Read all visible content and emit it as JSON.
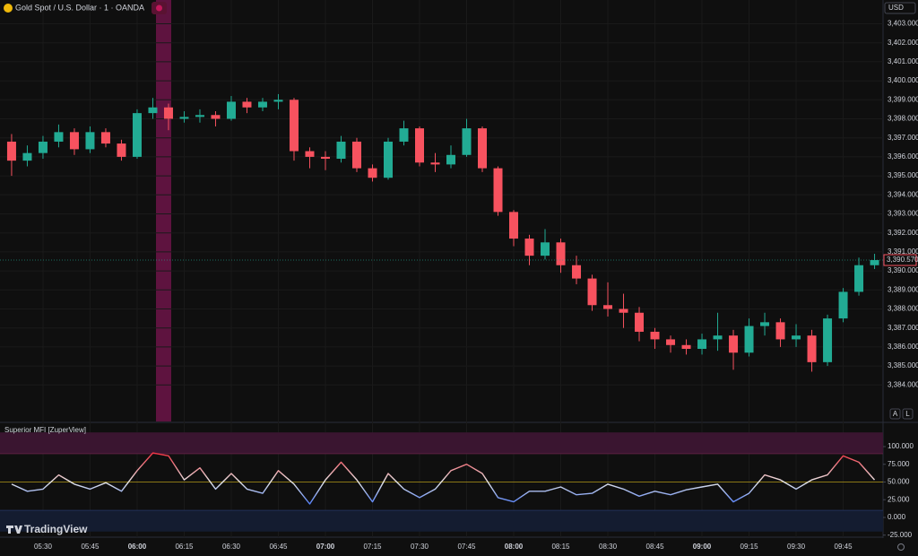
{
  "header": {
    "symbol": "Gold Spot / U.S. Dollar · 1 · OANDA",
    "currency": "USD",
    "auto_button": "A",
    "log_button": "L",
    "brand": "TradingView"
  },
  "chart_data": [
    {
      "type": "candlestick",
      "up_color": "#22ab94",
      "down_color": "#f7525f",
      "open": [
        3396.8,
        3395.8,
        3396.2,
        3396.8,
        3397.3,
        3396.4,
        3397.3,
        3396.7,
        3396.0,
        3398.3,
        3398.6,
        3398.0,
        3398.1,
        3398.2,
        3398.0,
        3398.9,
        3398.6,
        3398.9,
        3399.0,
        3396.3,
        3396.0,
        3395.9,
        3396.8,
        3395.4,
        3394.9,
        3396.8,
        3397.5,
        3395.7,
        3395.6,
        3396.1,
        3397.5,
        3395.4,
        3393.1,
        3391.7,
        3390.8,
        3391.5,
        3390.3,
        3389.6,
        3388.2,
        3388.0,
        3387.8,
        3386.8,
        3386.4,
        3386.1,
        3385.9,
        3386.4,
        3386.6,
        3385.7,
        3387.1,
        3387.3,
        3386.4,
        3386.6,
        3385.2,
        3387.5,
        3388.9,
        3390.3
      ],
      "high": [
        3397.2,
        3396.6,
        3397.1,
        3397.7,
        3397.5,
        3397.6,
        3397.5,
        3396.9,
        3398.5,
        3399.1,
        3398.8,
        3398.4,
        3398.5,
        3398.4,
        3399.2,
        3399.1,
        3399.1,
        3399.3,
        3399.1,
        3396.5,
        3396.3,
        3397.1,
        3397.0,
        3395.6,
        3397.0,
        3397.9,
        3397.6,
        3396.2,
        3396.6,
        3398.0,
        3397.6,
        3395.5,
        3393.2,
        3391.9,
        3392.2,
        3391.7,
        3390.8,
        3389.8,
        3389.4,
        3388.8,
        3388.1,
        3387.0,
        3386.6,
        3386.4,
        3386.7,
        3387.8,
        3386.9,
        3387.5,
        3387.8,
        3387.5,
        3387.2,
        3386.9,
        3387.7,
        3389.1,
        3390.7,
        3390.9
      ],
      "low": [
        3395.0,
        3395.5,
        3395.9,
        3396.5,
        3396.1,
        3396.2,
        3396.5,
        3395.8,
        3395.9,
        3398.0,
        3397.4,
        3397.8,
        3397.8,
        3397.6,
        3397.9,
        3398.3,
        3398.4,
        3398.5,
        3395.8,
        3395.4,
        3395.3,
        3395.7,
        3395.2,
        3394.7,
        3394.8,
        3396.6,
        3395.5,
        3395.2,
        3395.4,
        3396.0,
        3395.2,
        3392.9,
        3391.3,
        3390.3,
        3390.6,
        3389.9,
        3389.3,
        3387.9,
        3387.6,
        3387.0,
        3386.3,
        3385.9,
        3385.7,
        3385.6,
        3385.6,
        3385.8,
        3384.8,
        3385.5,
        3386.6,
        3386.0,
        3386.0,
        3384.7,
        3385.0,
        3387.3,
        3388.7,
        3390.1
      ],
      "close": [
        3395.8,
        3396.2,
        3396.8,
        3397.3,
        3396.4,
        3397.3,
        3396.7,
        3396.0,
        3398.3,
        3398.6,
        3398.0,
        3398.1,
        3398.2,
        3398.0,
        3398.9,
        3398.6,
        3398.9,
        3399.0,
        3396.3,
        3396.0,
        3395.9,
        3396.8,
        3395.4,
        3394.9,
        3396.8,
        3397.5,
        3395.7,
        3395.6,
        3396.1,
        3397.5,
        3395.4,
        3393.1,
        3391.7,
        3390.8,
        3391.5,
        3390.3,
        3389.6,
        3388.2,
        3388.0,
        3387.8,
        3386.8,
        3386.4,
        3386.1,
        3385.9,
        3386.4,
        3386.6,
        3385.7,
        3387.1,
        3387.3,
        3386.4,
        3386.6,
        3385.2,
        3387.5,
        3388.9,
        3390.3,
        3390.57
      ],
      "last_price": {
        "value": 3390.57,
        "label": "3,390.570"
      },
      "xlim": [
        -0.74,
        55.54
      ],
      "xticks": [
        {
          "value": 2,
          "label": "05:30"
        },
        {
          "value": 5,
          "label": "05:45"
        },
        {
          "value": 8,
          "label": "06:00"
        },
        {
          "value": 11,
          "label": "06:15"
        },
        {
          "value": 14,
          "label": "06:30"
        },
        {
          "value": 17,
          "label": "06:45"
        },
        {
          "value": 20,
          "label": "07:00"
        },
        {
          "value": 23,
          "label": "07:15"
        },
        {
          "value": 26,
          "label": "07:30"
        },
        {
          "value": 29,
          "label": "07:45"
        },
        {
          "value": 32,
          "label": "08:00"
        },
        {
          "value": 35,
          "label": "08:15"
        },
        {
          "value": 38,
          "label": "08:30"
        },
        {
          "value": 41,
          "label": "08:45"
        },
        {
          "value": 44,
          "label": "09:00"
        },
        {
          "value": 47,
          "label": "09:15"
        },
        {
          "value": 50,
          "label": "09:30"
        },
        {
          "value": 53,
          "label": "09:45"
        }
      ],
      "ylim": [
        3382.08,
        3404.25
      ],
      "yticks": [
        {
          "value": 3403,
          "label": "3,403.000"
        },
        {
          "value": 3402,
          "label": "3,402.000"
        },
        {
          "value": 3401,
          "label": "3,401.000"
        },
        {
          "value": 3400,
          "label": "3,400.000"
        },
        {
          "value": 3399,
          "label": "3,399.000"
        },
        {
          "value": 3398,
          "label": "3,398.000"
        },
        {
          "value": 3397,
          "label": "3,397.000"
        },
        {
          "value": 3396,
          "label": "3,396.000"
        },
        {
          "value": 3395,
          "label": "3,395.000"
        },
        {
          "value": 3394,
          "label": "3,394.000"
        },
        {
          "value": 3393,
          "label": "3,393.000"
        },
        {
          "value": 3392,
          "label": "3,392.000"
        },
        {
          "value": 3391,
          "label": "3,391.000"
        },
        {
          "value": 3390,
          "label": "3,390.000"
        },
        {
          "value": 3389,
          "label": "3,389.000"
        },
        {
          "value": 3388,
          "label": "3,388.000"
        },
        {
          "value": 3387,
          "label": "3,387.000"
        },
        {
          "value": 3386,
          "label": "3,386.000"
        },
        {
          "value": 3385,
          "label": "3,385.000"
        },
        {
          "value": 3384,
          "label": "3,384.000"
        }
      ]
    },
    {
      "type": "line",
      "title": "Superior MFI [ZuperView]",
      "values": [
        47,
        37,
        40,
        60,
        47,
        40,
        49,
        37,
        66,
        91,
        87,
        53,
        70,
        40,
        62,
        40,
        34,
        66,
        47,
        19,
        53,
        78,
        53,
        22,
        62,
        40,
        28,
        40,
        66,
        75,
        62,
        28,
        22,
        37,
        37,
        43,
        32,
        34,
        47,
        40,
        30,
        37,
        32,
        39,
        43,
        47,
        22,
        34,
        60,
        53,
        40,
        53,
        60,
        87,
        78,
        53
      ],
      "high_color": "#f23645",
      "mid_color": "#e8e8e8",
      "low_color": "#2962ff",
      "upper_band": [
        90,
        120
      ],
      "upper_band_color": "#3a1530",
      "lower_band": [
        -20,
        10
      ],
      "lower_band_color": "#141c30",
      "midline": 50,
      "midline_color": "#b59a1a",
      "ylim": [
        -22.8,
        129.1
      ],
      "yticks": [
        {
          "value": 100,
          "label": "100.000"
        },
        {
          "value": 75,
          "label": "75.000"
        },
        {
          "value": 50,
          "label": "50.000"
        },
        {
          "value": 25,
          "label": "25.000"
        },
        {
          "value": 0,
          "label": "0.000"
        },
        {
          "value": -25,
          "label": "-25.000"
        }
      ]
    }
  ]
}
